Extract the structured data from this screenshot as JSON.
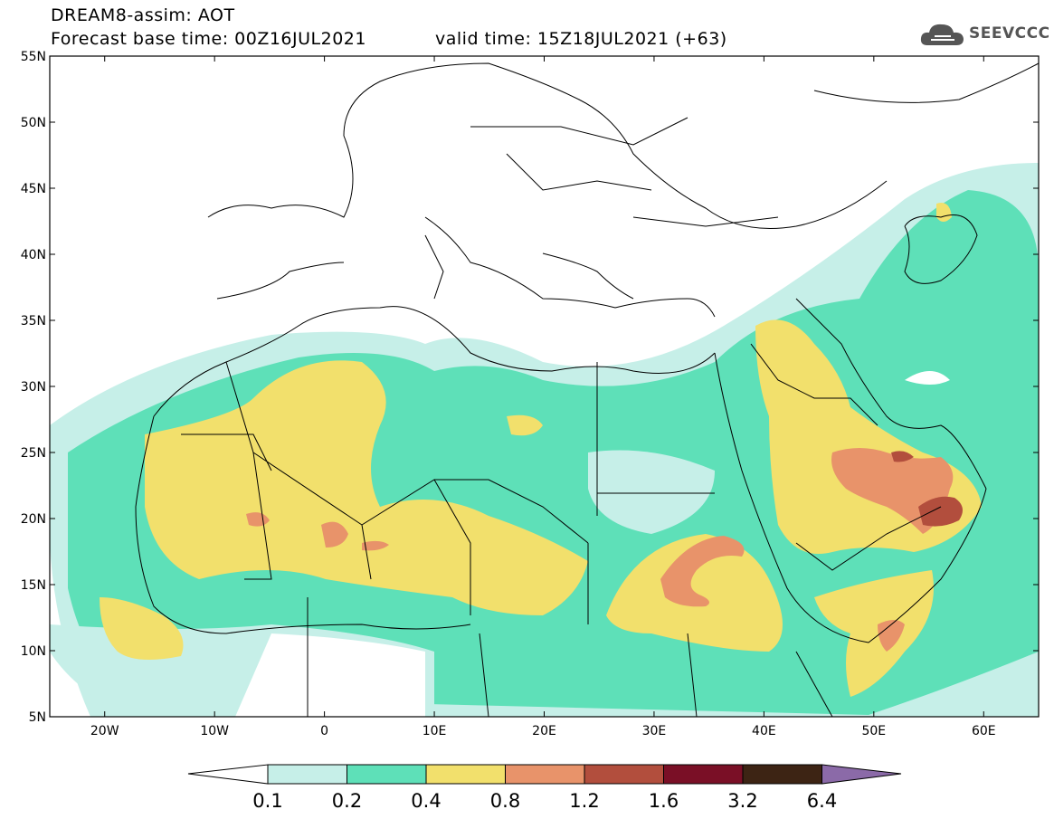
{
  "header": {
    "title": "DREAM8-assim: AOT",
    "base_time_label": "Forecast base time: 00Z16JUL2021",
    "valid_time_label": "valid time: 15Z18JUL2021 (+63)"
  },
  "logo": {
    "text": "SEEVCCC",
    "icon": "cloud-logo-icon"
  },
  "map": {
    "variable": "AOT",
    "lat_ticks": [
      "55N",
      "50N",
      "45N",
      "40N",
      "35N",
      "30N",
      "25N",
      "20N",
      "15N",
      "10N",
      "5N"
    ],
    "lon_ticks": [
      "20W",
      "10W",
      "0",
      "10E",
      "20E",
      "30E",
      "40E",
      "50E",
      "60E"
    ],
    "lat_range": [
      5,
      55
    ],
    "lon_range": [
      -25,
      65
    ]
  },
  "legend": {
    "levels": [
      "0.1",
      "0.2",
      "0.4",
      "0.8",
      "1.2",
      "1.6",
      "3.2",
      "6.4"
    ],
    "colors": [
      "#ffffff",
      "#c6efe8",
      "#5ee0b8",
      "#f2e06c",
      "#e8936a",
      "#b24e3d",
      "#7a0f26",
      "#3d2414",
      "#8b6aa8"
    ]
  }
}
